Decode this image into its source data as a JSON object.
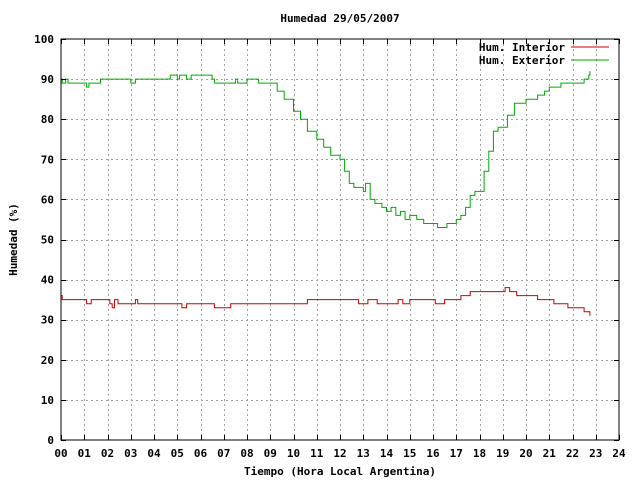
{
  "chart_data": {
    "type": "line",
    "title": "Humedad 29/05/2007",
    "xlabel": "Tiempo (Hora Local Argentina)",
    "ylabel": "Humedad (%)",
    "xlim": [
      0,
      24
    ],
    "ylim": [
      0,
      100
    ],
    "x_ticks": [
      0,
      1,
      2,
      3,
      4,
      5,
      6,
      7,
      8,
      9,
      10,
      11,
      12,
      13,
      14,
      15,
      16,
      17,
      18,
      19,
      20,
      21,
      22,
      23,
      24
    ],
    "x_tick_labels": [
      "00",
      "01",
      "02",
      "03",
      "04",
      "05",
      "06",
      "07",
      "08",
      "09",
      "10",
      "11",
      "12",
      "13",
      "14",
      "15",
      "16",
      "17",
      "18",
      "19",
      "20",
      "21",
      "22",
      "23",
      "24"
    ],
    "y_ticks": [
      0,
      10,
      20,
      30,
      40,
      50,
      60,
      70,
      80,
      90,
      100
    ],
    "y_tick_labels": [
      "0",
      "10",
      "20",
      "30",
      "40",
      "50",
      "60",
      "70",
      "80",
      "90",
      "100"
    ],
    "grid": true,
    "legend_position": "top-right",
    "series": [
      {
        "name": "Hum. Interior",
        "color": "#cc0000",
        "points": [
          [
            0.0,
            36
          ],
          [
            0.05,
            35
          ],
          [
            1.0,
            35
          ],
          [
            1.1,
            34
          ],
          [
            1.3,
            35
          ],
          [
            2.0,
            35
          ],
          [
            2.1,
            34
          ],
          [
            2.2,
            33
          ],
          [
            2.3,
            35
          ],
          [
            2.45,
            34
          ],
          [
            3.0,
            34
          ],
          [
            3.2,
            35
          ],
          [
            3.3,
            34
          ],
          [
            4.0,
            34
          ],
          [
            5.0,
            34
          ],
          [
            5.2,
            33
          ],
          [
            5.4,
            34
          ],
          [
            6.0,
            34
          ],
          [
            6.5,
            34
          ],
          [
            6.6,
            33
          ],
          [
            7.2,
            33
          ],
          [
            7.3,
            34
          ],
          [
            8.0,
            34
          ],
          [
            8.7,
            34
          ],
          [
            9.0,
            34
          ],
          [
            10.0,
            34
          ],
          [
            10.6,
            35
          ],
          [
            11.0,
            35
          ],
          [
            12.0,
            35
          ],
          [
            12.7,
            35
          ],
          [
            12.8,
            34
          ],
          [
            13.2,
            35
          ],
          [
            13.5,
            35
          ],
          [
            13.6,
            34
          ],
          [
            14.0,
            34
          ],
          [
            14.5,
            35
          ],
          [
            14.7,
            34
          ],
          [
            15.0,
            35
          ],
          [
            16.0,
            35
          ],
          [
            16.1,
            34
          ],
          [
            16.5,
            35
          ],
          [
            17.0,
            35
          ],
          [
            17.2,
            36
          ],
          [
            17.5,
            36
          ],
          [
            17.6,
            37
          ],
          [
            18.0,
            37
          ],
          [
            18.5,
            37
          ],
          [
            19.0,
            37
          ],
          [
            19.1,
            38
          ],
          [
            19.3,
            37
          ],
          [
            19.6,
            36
          ],
          [
            20.0,
            36
          ],
          [
            20.5,
            35
          ],
          [
            21.0,
            35
          ],
          [
            21.2,
            34
          ],
          [
            21.5,
            34
          ],
          [
            21.8,
            33
          ],
          [
            22.0,
            33
          ],
          [
            22.4,
            33
          ],
          [
            22.5,
            32
          ],
          [
            22.7,
            32
          ],
          [
            22.75,
            31
          ]
        ]
      },
      {
        "name": "Hum. Exterior",
        "color": "#00aa00",
        "points": [
          [
            0.0,
            90
          ],
          [
            0.05,
            89
          ],
          [
            0.2,
            90
          ],
          [
            0.3,
            89
          ],
          [
            1.0,
            89
          ],
          [
            1.1,
            88
          ],
          [
            1.2,
            89
          ],
          [
            1.6,
            89
          ],
          [
            1.7,
            90
          ],
          [
            2.0,
            90
          ],
          [
            2.9,
            90
          ],
          [
            3.0,
            89
          ],
          [
            3.2,
            90
          ],
          [
            4.0,
            90
          ],
          [
            4.6,
            90
          ],
          [
            4.7,
            91
          ],
          [
            5.0,
            90
          ],
          [
            5.1,
            91
          ],
          [
            5.4,
            90
          ],
          [
            5.6,
            91
          ],
          [
            6.0,
            91
          ],
          [
            6.5,
            90
          ],
          [
            6.6,
            89
          ],
          [
            7.0,
            89
          ],
          [
            7.5,
            90
          ],
          [
            7.6,
            89
          ],
          [
            8.0,
            90
          ],
          [
            8.5,
            89
          ],
          [
            9.0,
            89
          ],
          [
            9.3,
            87
          ],
          [
            9.6,
            85
          ],
          [
            10.0,
            82
          ],
          [
            10.3,
            80
          ],
          [
            10.6,
            77
          ],
          [
            11.0,
            75
          ],
          [
            11.3,
            73
          ],
          [
            11.6,
            71
          ],
          [
            12.0,
            70
          ],
          [
            12.2,
            67
          ],
          [
            12.4,
            64
          ],
          [
            12.6,
            63
          ],
          [
            12.8,
            63
          ],
          [
            13.0,
            62
          ],
          [
            13.1,
            64
          ],
          [
            13.3,
            60
          ],
          [
            13.5,
            59
          ],
          [
            13.8,
            58
          ],
          [
            14.0,
            57
          ],
          [
            14.2,
            58
          ],
          [
            14.4,
            56
          ],
          [
            14.6,
            57
          ],
          [
            14.8,
            55
          ],
          [
            15.0,
            56
          ],
          [
            15.3,
            55
          ],
          [
            15.6,
            54
          ],
          [
            16.0,
            54
          ],
          [
            16.2,
            53
          ],
          [
            16.6,
            54
          ],
          [
            17.0,
            55
          ],
          [
            17.2,
            56
          ],
          [
            17.4,
            58
          ],
          [
            17.6,
            61
          ],
          [
            17.8,
            62
          ],
          [
            18.0,
            62
          ],
          [
            18.2,
            67
          ],
          [
            18.4,
            72
          ],
          [
            18.6,
            77
          ],
          [
            18.8,
            78
          ],
          [
            19.0,
            78
          ],
          [
            19.2,
            81
          ],
          [
            19.5,
            84
          ],
          [
            20.0,
            85
          ],
          [
            20.5,
            86
          ],
          [
            20.8,
            87
          ],
          [
            21.0,
            88
          ],
          [
            21.3,
            88
          ],
          [
            21.5,
            89
          ],
          [
            22.0,
            89
          ],
          [
            22.4,
            89
          ],
          [
            22.5,
            90
          ],
          [
            22.7,
            91
          ],
          [
            22.75,
            92
          ]
        ]
      }
    ]
  }
}
